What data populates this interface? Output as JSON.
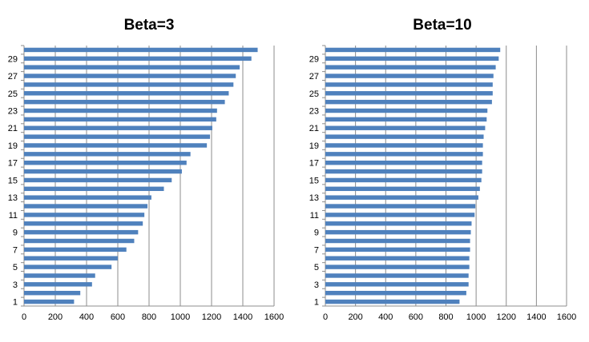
{
  "colors": {
    "bar": "#4f81bd",
    "grid": "#8c8c8c"
  },
  "chart_data": [
    {
      "type": "bar",
      "orientation": "horizontal",
      "title": "Beta=3",
      "categories": [
        1,
        2,
        3,
        4,
        5,
        6,
        7,
        8,
        9,
        10,
        11,
        12,
        13,
        14,
        15,
        16,
        17,
        18,
        19,
        20,
        21,
        22,
        23,
        24,
        25,
        26,
        27,
        28,
        29,
        30
      ],
      "y_tick_labels": [
        "1",
        "3",
        "5",
        "7",
        "9",
        "11",
        "13",
        "15",
        "17",
        "19",
        "21",
        "23",
        "25",
        "27",
        "29"
      ],
      "values": [
        320,
        360,
        435,
        455,
        560,
        600,
        655,
        705,
        730,
        760,
        770,
        790,
        815,
        895,
        945,
        1010,
        1040,
        1065,
        1170,
        1190,
        1205,
        1230,
        1235,
        1285,
        1310,
        1340,
        1355,
        1380,
        1455,
        1495
      ],
      "xlim": [
        0,
        1600
      ],
      "x_ticks": [
        0,
        200,
        400,
        600,
        800,
        1000,
        1200,
        1400,
        1600
      ],
      "x_tick_labels": [
        "0",
        "200",
        "400",
        "600",
        "800",
        "1000",
        "1200",
        "1400",
        "1600"
      ],
      "grid": "vertical"
    },
    {
      "type": "bar",
      "orientation": "horizontal",
      "title": "Beta=10",
      "categories": [
        1,
        2,
        3,
        4,
        5,
        6,
        7,
        8,
        9,
        10,
        11,
        12,
        13,
        14,
        15,
        16,
        17,
        18,
        19,
        20,
        21,
        22,
        23,
        24,
        25,
        26,
        27,
        28,
        29,
        30
      ],
      "y_tick_labels": [
        "1",
        "3",
        "5",
        "7",
        "9",
        "11",
        "13",
        "15",
        "17",
        "19",
        "21",
        "23",
        "25",
        "27",
        "29"
      ],
      "values": [
        890,
        935,
        950,
        950,
        955,
        955,
        960,
        960,
        965,
        970,
        990,
        995,
        1015,
        1025,
        1035,
        1040,
        1040,
        1045,
        1045,
        1050,
        1060,
        1070,
        1075,
        1105,
        1110,
        1110,
        1115,
        1130,
        1150,
        1160
      ],
      "xlim": [
        0,
        1600
      ],
      "x_ticks": [
        0,
        200,
        400,
        600,
        800,
        1000,
        1200,
        1400,
        1600
      ],
      "x_tick_labels": [
        "0",
        "200",
        "400",
        "600",
        "800",
        "1000",
        "1200",
        "1400",
        "1600"
      ],
      "grid": "vertical"
    }
  ]
}
